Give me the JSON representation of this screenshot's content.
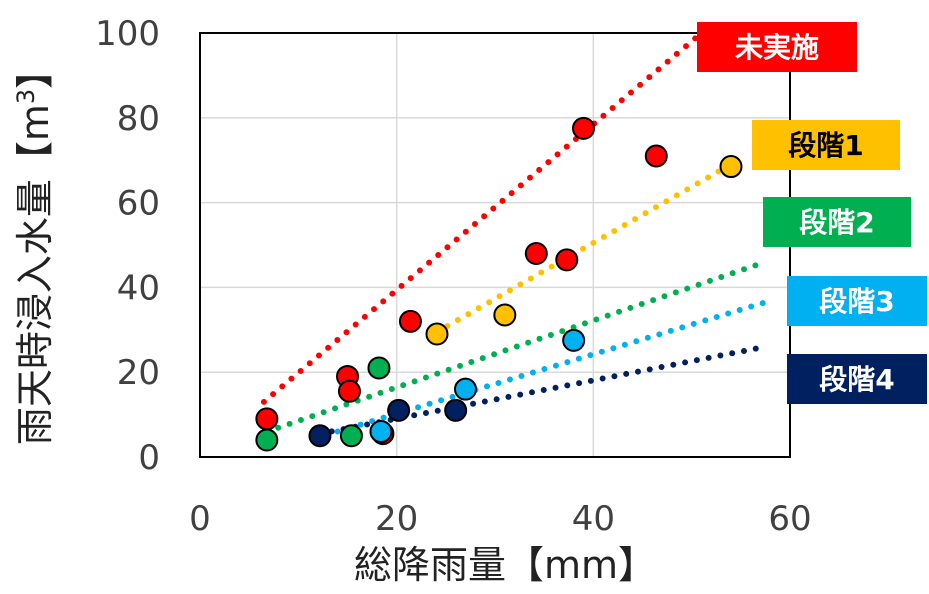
{
  "chart_data": {
    "type": "scatter",
    "title": "",
    "xlabel": "総降雨量【mm】",
    "ylabel_main": "雨天時浸入水量【m",
    "ylabel_sup": "3",
    "ylabel_tail": "】",
    "xlim": [
      0,
      60
    ],
    "ylim": [
      0,
      100
    ],
    "x_ticks": [
      0,
      20,
      40,
      60
    ],
    "y_ticks": [
      0,
      20,
      40,
      60,
      80,
      100
    ],
    "grid": true,
    "series": [
      {
        "name": "未実施",
        "color": "#ff0000",
        "label_text_color": "#ffffff",
        "points": [
          [
            6.8,
            9
          ],
          [
            15,
            19
          ],
          [
            15.2,
            15.5
          ],
          [
            18.6,
            5.5
          ],
          [
            21.4,
            32
          ],
          [
            34.2,
            48
          ],
          [
            37.3,
            46.5
          ],
          [
            39,
            77.5
          ],
          [
            46.4,
            71
          ]
        ],
        "trend": [
          [
            6.5,
            13
          ],
          [
            50.5,
            99
          ]
        ]
      },
      {
        "name": "段階1",
        "color": "#ffc000",
        "label_text_color": "#000000",
        "points": [
          [
            24.1,
            29
          ],
          [
            31,
            33.5
          ],
          [
            54,
            68.5
          ]
        ],
        "trend": [
          [
            24.1,
            29.5
          ],
          [
            54,
            69
          ]
        ]
      },
      {
        "name": "段階2",
        "color": "#00b050",
        "label_text_color": "#ffffff",
        "points": [
          [
            6.8,
            4
          ],
          [
            15.4,
            5
          ],
          [
            18.2,
            21
          ]
        ],
        "trend": [
          [
            6.8,
            6
          ],
          [
            57.5,
            46
          ]
        ]
      },
      {
        "name": "段階3",
        "color": "#00b0f0",
        "label_text_color": "#ffffff",
        "points": [
          [
            18.4,
            6
          ],
          [
            27,
            16
          ],
          [
            38,
            27.5
          ]
        ],
        "trend": [
          [
            14,
            6
          ],
          [
            57.5,
            36.5
          ]
        ]
      },
      {
        "name": "段階4",
        "color": "#002060",
        "label_text_color": "#ffffff",
        "points": [
          [
            12.2,
            5
          ],
          [
            20.2,
            11
          ],
          [
            26,
            11
          ]
        ],
        "trend": [
          [
            12.2,
            5.5
          ],
          [
            57.5,
            26
          ]
        ]
      }
    ],
    "labels_placement": "right-side stacked boxes"
  }
}
